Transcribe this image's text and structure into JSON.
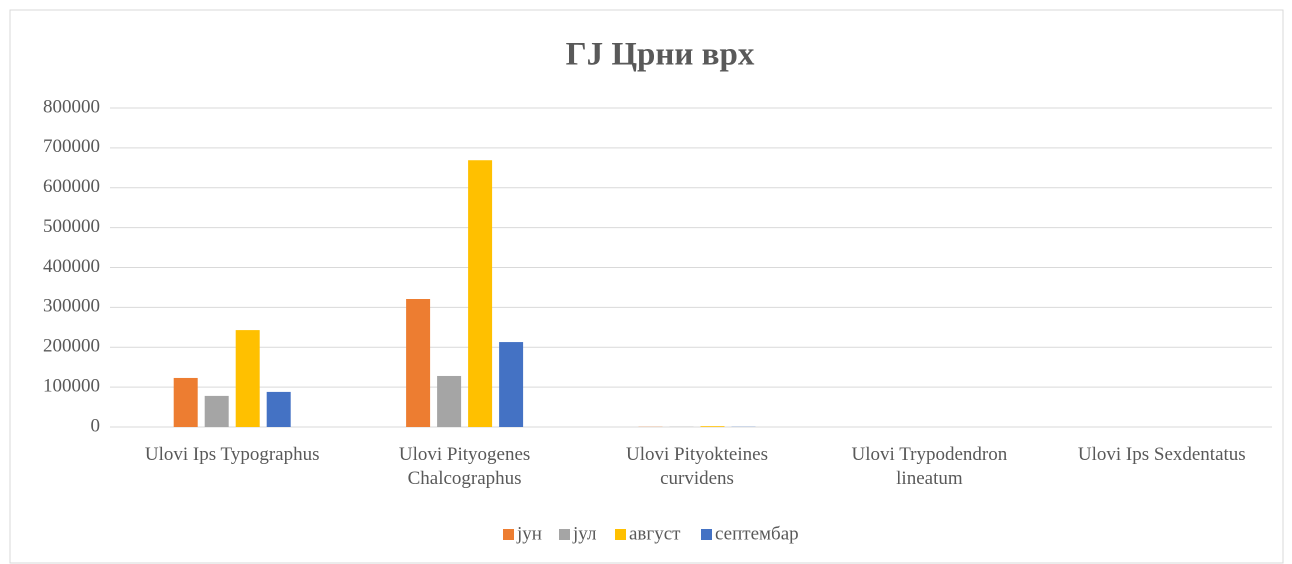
{
  "chart_data": {
    "type": "bar",
    "title": "ГЈ Црни врх",
    "categories": [
      "Ulovi Ips Typographus",
      "Ulovi Pityogenes Chalcographus",
      "Ulovi Pityokteines curvidens",
      "Ulovi Trypodendron lineatum",
      "Ulovi Ips Sexdentatus"
    ],
    "series": [
      {
        "name": "јун",
        "color": "#ED7D31",
        "values": [
          123000,
          321000,
          500,
          0,
          0
        ]
      },
      {
        "name": "јул",
        "color": "#A5A5A5",
        "values": [
          78000,
          128000,
          500,
          0,
          0
        ]
      },
      {
        "name": "август",
        "color": "#FFC000",
        "values": [
          243000,
          669000,
          2000,
          0,
          0
        ]
      },
      {
        "name": "септембар",
        "color": "#4472C4",
        "values": [
          88000,
          213000,
          500,
          0,
          0
        ]
      }
    ],
    "ylim": [
      0,
      800000
    ],
    "yticks": [
      0,
      100000,
      200000,
      300000,
      400000,
      500000,
      600000,
      700000,
      800000
    ],
    "grid": true,
    "legend": "bottom"
  }
}
